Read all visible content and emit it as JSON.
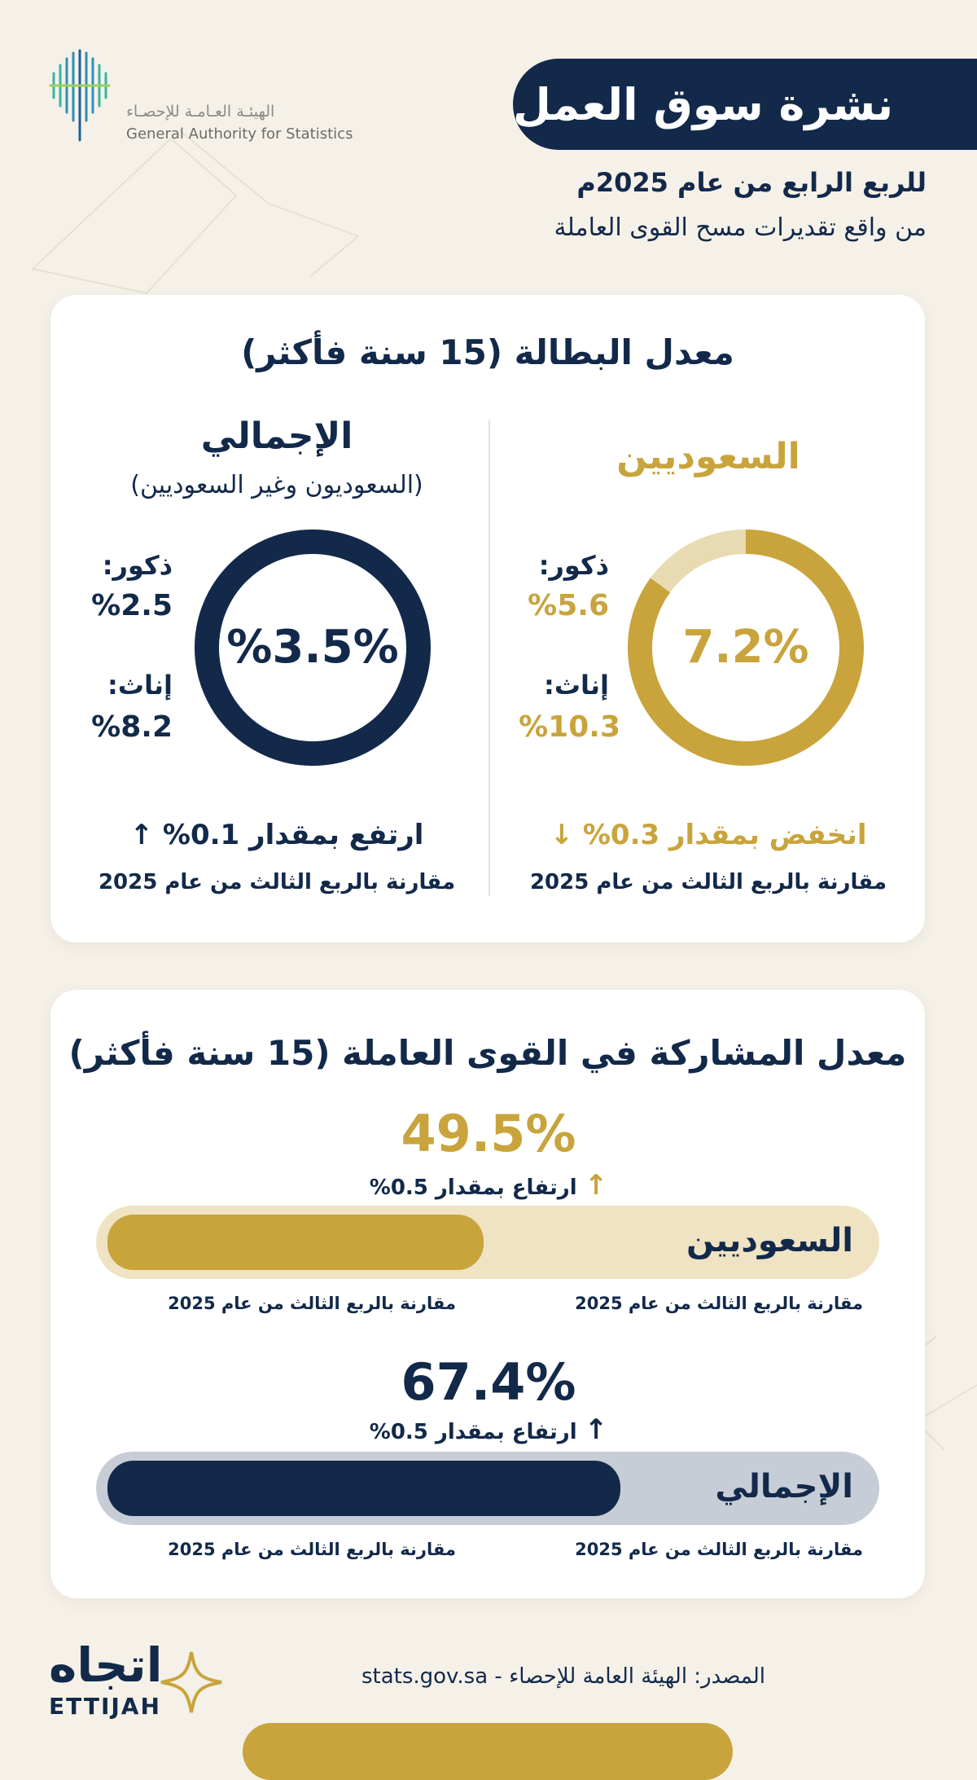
{
  "header": {
    "logo_ar": "الهيئـة العـامـة للإحصـاء",
    "logo_en": "General Authority for Statistics",
    "title": "نشرة سوق العمل",
    "subtitle1": "للربع الرابع من عام 2025م",
    "subtitle2": "من واقع تقديرات مسح القوى العاملة"
  },
  "unemployment": {
    "title": "معدل البطالة (15 سنة فأكثر)",
    "saudi": {
      "title": "السعوديين",
      "rate_label": "7.2%",
      "rate": 7.2,
      "male_label": "ذكور:",
      "male_value": "%5.6",
      "female_label": "إناث:",
      "female_value": "%10.3",
      "change": "انخفض بمقدار 0.3%",
      "change_arrow": "↓",
      "compare": "مقارنة بالربع الثالث من عام 2025"
    },
    "total": {
      "title": "الإجمالي",
      "subtitle": "(السعوديون وغير السعوديين)",
      "rate_label": "%3.5%",
      "rate": 3.5,
      "male_label": "ذكور:",
      "male_value": "%2.5",
      "female_label": "إناث:",
      "female_value": "%8.2",
      "change": "ارتفع بمقدار 0.1%",
      "change_arrow": "↑",
      "compare": "مقارنة بالربع الثالث من عام 2025"
    }
  },
  "participation": {
    "title": "معدل المشاركة في القوى العاملة (15 سنة فأكثر)",
    "saudi": {
      "value_label": "49.5%",
      "value": 49.5,
      "change": "ارتفاع بمقدار 0.5%",
      "arrow": "↑",
      "label": "السعوديين",
      "compare_right": "مقارنة بالربع الثالث من عام 2025",
      "compare_left": "مقارنة بالربع الثالث من عام 2025"
    },
    "total": {
      "value_label": "67.4%",
      "value": 67.4,
      "change": "ارتفاع بمقدار 0.5%",
      "arrow": "↑",
      "label": "الإجمالي",
      "compare_right": "مقارنة بالربع الثالث من عام 2025",
      "compare_left": "مقارنة بالربع الثالث من عام 2025"
    }
  },
  "footer": {
    "brand_ar": "اتجاه",
    "brand_en": "ETTIJAH",
    "source": "المصدر: الهيئة العامة للإحصاء - stats.gov.sa"
  },
  "colors": {
    "navy": "#12294a",
    "gold": "#c9a43c",
    "gold_light": "#e8dbb1",
    "navy_light": "#c7cdd6",
    "gold_track": "#efe3c3"
  }
}
